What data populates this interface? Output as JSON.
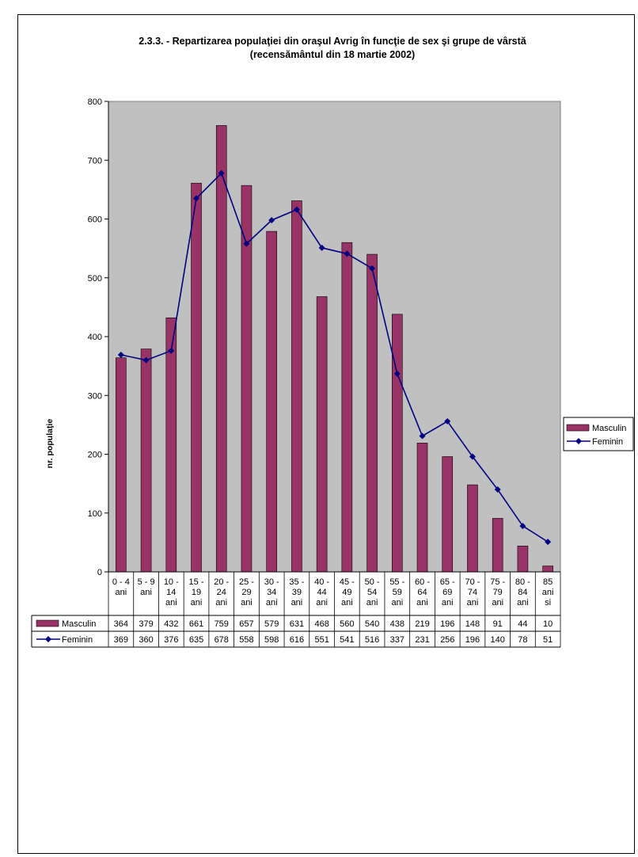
{
  "chart_data": {
    "type": "bar",
    "title": "2.3.3. - Repartizarea populaţiei din oraşul Avrig în funcţie de sex şi grupe de vârstă",
    "subtitle": "(recensământul din 18 martie 2002)",
    "ylabel": "nr. populaţie",
    "xlabel": "",
    "ylim": [
      0,
      800
    ],
    "y_ticks": [
      0,
      100,
      200,
      300,
      400,
      500,
      600,
      700,
      800
    ],
    "grid": false,
    "legend_position": "right",
    "plot_background": "#c0c0c0",
    "categories": [
      [
        "0 - 4",
        "ani"
      ],
      [
        "5 - 9",
        "ani"
      ],
      [
        "10 -",
        "14",
        "ani"
      ],
      [
        "15 -",
        "19",
        "ani"
      ],
      [
        "20 -",
        "24",
        "ani"
      ],
      [
        "25 -",
        "29",
        "ani"
      ],
      [
        "30 -",
        "34",
        "ani"
      ],
      [
        "35 -",
        "39",
        "ani"
      ],
      [
        "40 -",
        "44",
        "ani"
      ],
      [
        "45 -",
        "49",
        "ani"
      ],
      [
        "50 -",
        "54",
        "ani"
      ],
      [
        "55 -",
        "59",
        "ani"
      ],
      [
        "60 -",
        "64",
        "ani"
      ],
      [
        "65 -",
        "69",
        "ani"
      ],
      [
        "70 -",
        "74",
        "ani"
      ],
      [
        "75 -",
        "79",
        "ani"
      ],
      [
        "80 -",
        "84",
        "ani"
      ],
      [
        "85",
        "ani",
        "si"
      ]
    ],
    "series": [
      {
        "name": "Masculin",
        "kind": "bar",
        "color": "#993366",
        "values": [
          364,
          379,
          432,
          661,
          759,
          657,
          579,
          631,
          468,
          560,
          540,
          438,
          219,
          196,
          148,
          91,
          44,
          10
        ]
      },
      {
        "name": "Feminin",
        "kind": "line",
        "marker": "diamond",
        "color": "#000080",
        "values": [
          369,
          360,
          376,
          635,
          678,
          558,
          598,
          616,
          551,
          541,
          516,
          337,
          231,
          256,
          196,
          140,
          78,
          51
        ]
      }
    ]
  }
}
